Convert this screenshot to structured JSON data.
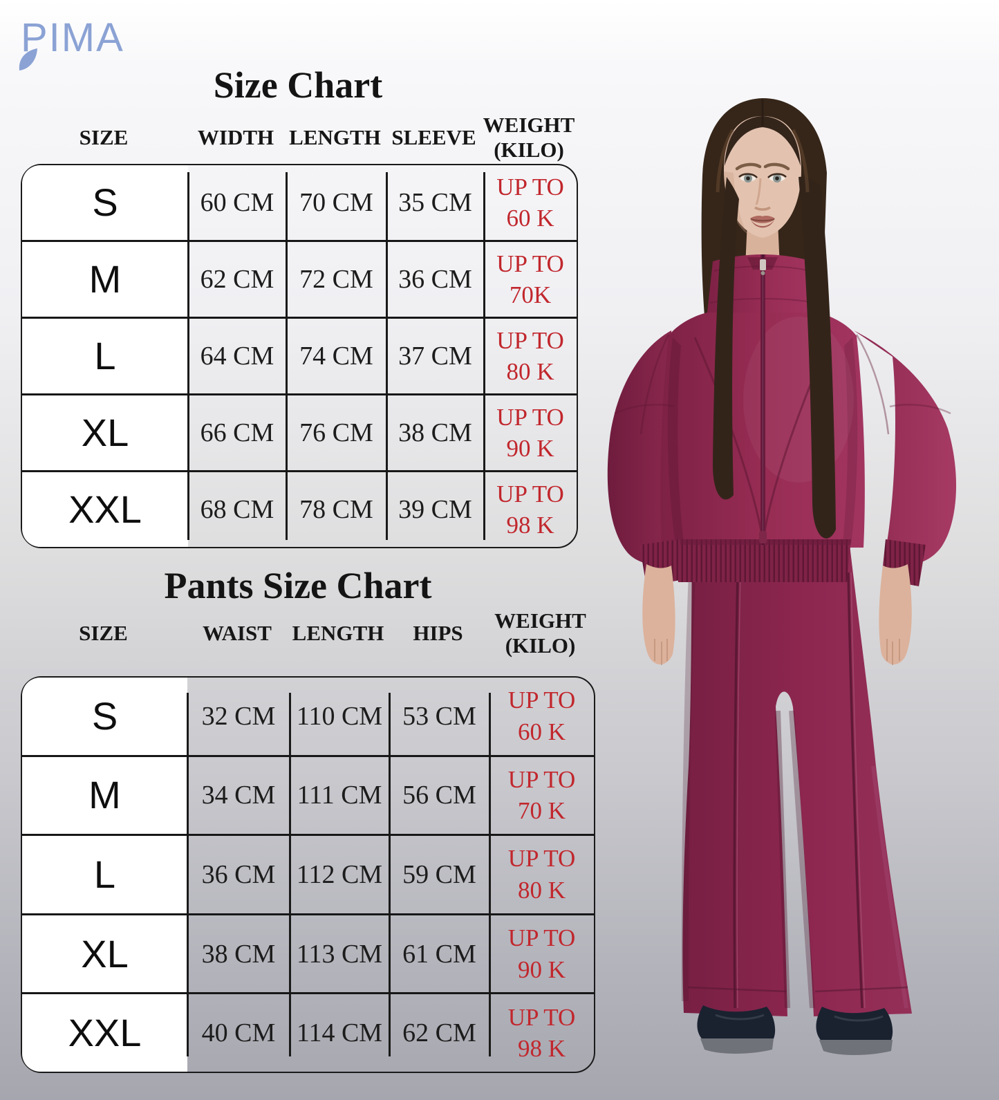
{
  "brand": {
    "logo_text": "PIMA",
    "logo_color": "#8ba2d4"
  },
  "size_chart": {
    "title": "Size Chart",
    "headers": [
      "SIZE",
      "WIDTH",
      "LENGTH",
      "SLEEVE",
      "WEIGHT\n(KILO)"
    ],
    "rows": [
      {
        "size": "S",
        "values": [
          "60 CM",
          "70 CM",
          "35 CM"
        ],
        "weight": "UP TO\n60 K"
      },
      {
        "size": "M",
        "values": [
          "62 CM",
          "72 CM",
          "36 CM"
        ],
        "weight": "UP TO\n70K"
      },
      {
        "size": "L",
        "values": [
          "64 CM",
          "74 CM",
          "37 CM"
        ],
        "weight": "UP TO\n80 K"
      },
      {
        "size": "XL",
        "values": [
          "66 CM",
          "76 CM",
          "38 CM"
        ],
        "weight": "UP TO\n90 K"
      },
      {
        "size": "XXL",
        "values": [
          "68 CM",
          "78 CM",
          "39 CM"
        ],
        "weight": "UP TO\n98 K"
      }
    ]
  },
  "pants_chart": {
    "title": "Pants Size Chart",
    "headers": [
      "SIZE",
      "WAIST",
      "LENGTH",
      "HIPS",
      "WEIGHT\n(KILO)"
    ],
    "rows": [
      {
        "size": "S",
        "values": [
          "32 CM",
          "110 CM",
          "53 CM"
        ],
        "weight": "UP TO\n60 K"
      },
      {
        "size": "M",
        "values": [
          "34 CM",
          "111 CM",
          "56 CM"
        ],
        "weight": "UP TO\n70 K"
      },
      {
        "size": "L",
        "values": [
          "36 CM",
          "112 CM",
          "59 CM"
        ],
        "weight": "UP TO\n80 K"
      },
      {
        "size": "XL",
        "values": [
          "38 CM",
          "113 CM",
          "61 CM"
        ],
        "weight": "UP TO\n90 K"
      },
      {
        "size": "XXL",
        "values": [
          "40 CM",
          "114 CM",
          "62 CM"
        ],
        "weight": "UP TO\n98 K"
      }
    ]
  },
  "colors": {
    "weight_text_red": "#c1272d",
    "table_border": "#1a1a1a",
    "jacket_burgundy": "#8e2750",
    "pants_burgundy": "#87224a",
    "shoes_navy": "#1a2230",
    "hair_brown": "#362619"
  },
  "model_photo": {
    "description": "Woman with long dark hair wearing an oversized burgundy zip-up tracksuit jacket and wide-leg burgundy pants with dark shoes"
  }
}
